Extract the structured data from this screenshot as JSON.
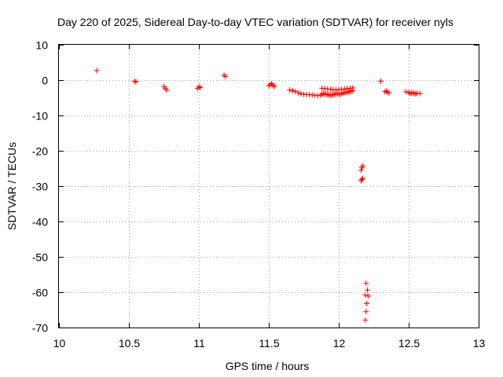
{
  "chart_data": {
    "type": "scatter",
    "title": "Day 220 of 2025, Sidereal Day-to-day VTEC variation (SDTVAR) for receiver nyls",
    "xlabel": "GPS time / hours",
    "ylabel": "SDTVAR / TECUs",
    "xlim": [
      10,
      13
    ],
    "ylim": [
      -70,
      10
    ],
    "xticks": [
      10,
      10.5,
      11,
      11.5,
      12,
      12.5,
      13
    ],
    "xtick_labels": [
      "10",
      "10.5",
      "11",
      "11.5",
      "12",
      "12.5",
      "13"
    ],
    "yticks": [
      10,
      0,
      -10,
      -20,
      -30,
      -40,
      -50,
      -60,
      -70
    ],
    "ytick_labels": [
      "10",
      "0",
      "-10",
      "-20",
      "-30",
      "-40",
      "-50",
      "-60",
      "-70"
    ],
    "grid": true,
    "marker": "+",
    "color": "#ff0000",
    "series": [
      {
        "name": "nyls",
        "x": [
          10.27,
          10.54,
          10.55,
          10.75,
          10.76,
          10.77,
          10.99,
          11.0,
          11.01,
          11.18,
          11.19,
          11.5,
          11.51,
          11.52,
          11.53,
          11.54,
          11.65,
          11.67,
          11.69,
          11.71,
          11.73,
          11.75,
          11.77,
          11.79,
          11.81,
          11.83,
          11.85,
          11.87,
          11.88,
          11.89,
          11.9,
          11.91,
          11.92,
          11.93,
          11.94,
          11.95,
          11.96,
          11.97,
          11.98,
          11.99,
          12.0,
          12.01,
          12.02,
          12.03,
          12.04,
          12.05,
          12.06,
          12.07,
          12.08,
          12.09,
          12.1,
          11.88,
          11.9,
          11.92,
          11.94,
          11.96,
          11.98,
          12.0,
          12.02,
          12.04,
          12.06,
          12.08,
          12.1,
          12.16,
          12.165,
          12.17,
          12.16,
          12.165,
          12.17,
          12.19,
          12.195,
          12.2,
          12.21,
          12.205,
          12.195,
          12.19,
          12.3,
          12.33,
          12.34,
          12.35,
          12.36,
          12.48,
          12.5,
          12.51,
          12.52,
          12.53,
          12.54,
          12.55,
          12.56,
          12.58
        ],
        "y": [
          2.7,
          -0.3,
          -0.5,
          -1.8,
          -2.3,
          -2.8,
          -2.4,
          -1.9,
          -2.1,
          1.4,
          1.0,
          -1.6,
          -1.3,
          -1.0,
          -1.5,
          -1.8,
          -2.8,
          -3.0,
          -3.2,
          -3.6,
          -3.9,
          -4.0,
          -4.1,
          -4.1,
          -4.2,
          -4.3,
          -4.4,
          -4.3,
          -4.0,
          -3.8,
          -3.9,
          -4.0,
          -4.1,
          -4.2,
          -4.3,
          -4.2,
          -4.1,
          -4.0,
          -3.9,
          -3.8,
          -3.9,
          -4.0,
          -3.8,
          -3.7,
          -3.6,
          -3.5,
          -3.4,
          -3.3,
          -3.2,
          -3.1,
          -3.0,
          -2.3,
          -2.4,
          -2.5,
          -2.6,
          -2.7,
          -2.8,
          -2.7,
          -2.6,
          -2.5,
          -2.4,
          -2.3,
          -2.2,
          -25.5,
          -24.8,
          -24.3,
          -28.5,
          -28.1,
          -27.8,
          -67.9,
          -65.5,
          -63.2,
          -61.1,
          -59.4,
          -57.5,
          -60.8,
          -0.3,
          -3.3,
          -3.1,
          -3.5,
          -3.6,
          -3.3,
          -3.5,
          -3.8,
          -3.7,
          -3.6,
          -3.8,
          -3.9,
          -3.7,
          -3.8
        ]
      }
    ]
  }
}
